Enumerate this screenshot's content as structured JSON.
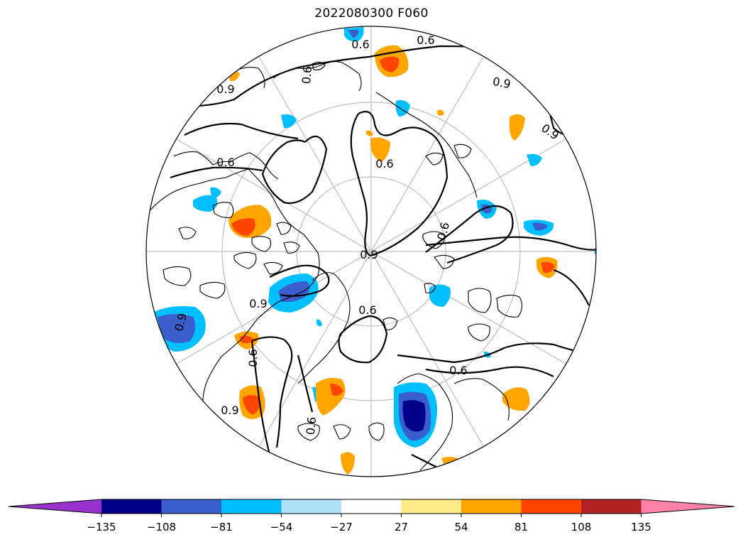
{
  "title": "2022080300 F060",
  "colorbar": {
    "colors": [
      "#9932cc",
      "#00008b",
      "#3a5fcd",
      "#00bfff",
      "#b2e2fb",
      "#ffffff",
      "#ffea8a",
      "#ffa500",
      "#ff4500",
      "#b22222",
      "#ff82ab"
    ],
    "ticks": [
      "−135",
      "−108",
      "−81",
      "−54",
      "−27",
      "27",
      "54",
      "81",
      "108",
      "135"
    ]
  },
  "contour_labels": [
    "0.9",
    "0.6",
    "0.6",
    "0.9",
    "0.6",
    "0.6",
    "0.9",
    "0.9",
    "0.6",
    "0.6",
    "0.9",
    "0.6",
    "0.6",
    "0.9",
    "0.6",
    "0.9",
    "0.6"
  ],
  "icons": {
    "pole": "north-polar-stereographic"
  }
}
